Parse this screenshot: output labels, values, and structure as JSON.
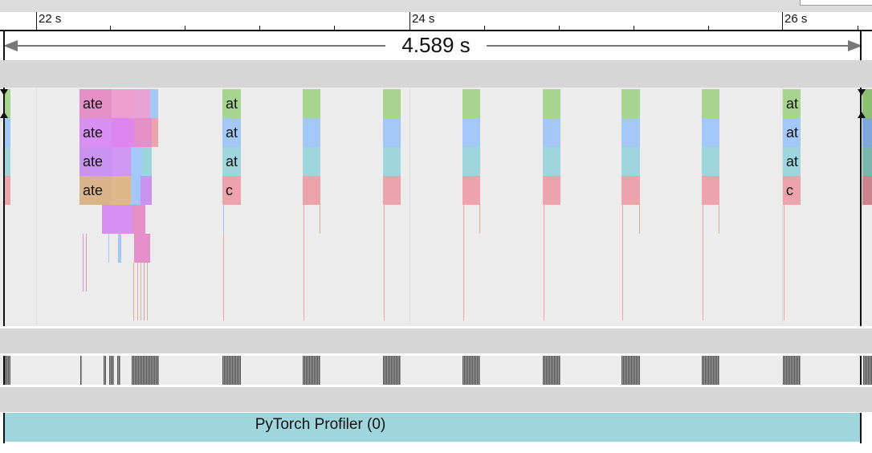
{
  "timeline": {
    "ticks": [
      {
        "label": "22 s"
      },
      {
        "label": "24 s"
      },
      {
        "label": "26 s"
      }
    ],
    "selection_duration": "4.589 s"
  },
  "tracks": {
    "thread_main": {
      "rows": [
        {
          "slices": [
            {
              "label": "ate",
              "color": "#e48fc7"
            },
            {
              "label": "at",
              "color": "#a7d48f"
            },
            {
              "label": "at",
              "color": "#a7d48f"
            }
          ]
        },
        {
          "slices": [
            {
              "label": "ate",
              "color": "#d98ef2"
            },
            {
              "label": "at",
              "color": "#a3c8f7"
            },
            {
              "label": "at",
              "color": "#a3c8f7"
            }
          ]
        },
        {
          "slices": [
            {
              "label": "ate",
              "color": "#c894ef"
            },
            {
              "label": "at",
              "color": "#9fd6de"
            },
            {
              "label": "at",
              "color": "#9fd6de"
            }
          ]
        },
        {
          "slices": [
            {
              "label": "ate",
              "color": "#d9b48a"
            },
            {
              "label": "c",
              "color": "#eda3ab"
            },
            {
              "label": "c",
              "color": "#eda3ab"
            }
          ]
        }
      ]
    },
    "process": {
      "label": "PyTorch Profiler (0)",
      "color": "#9fd6de"
    }
  }
}
